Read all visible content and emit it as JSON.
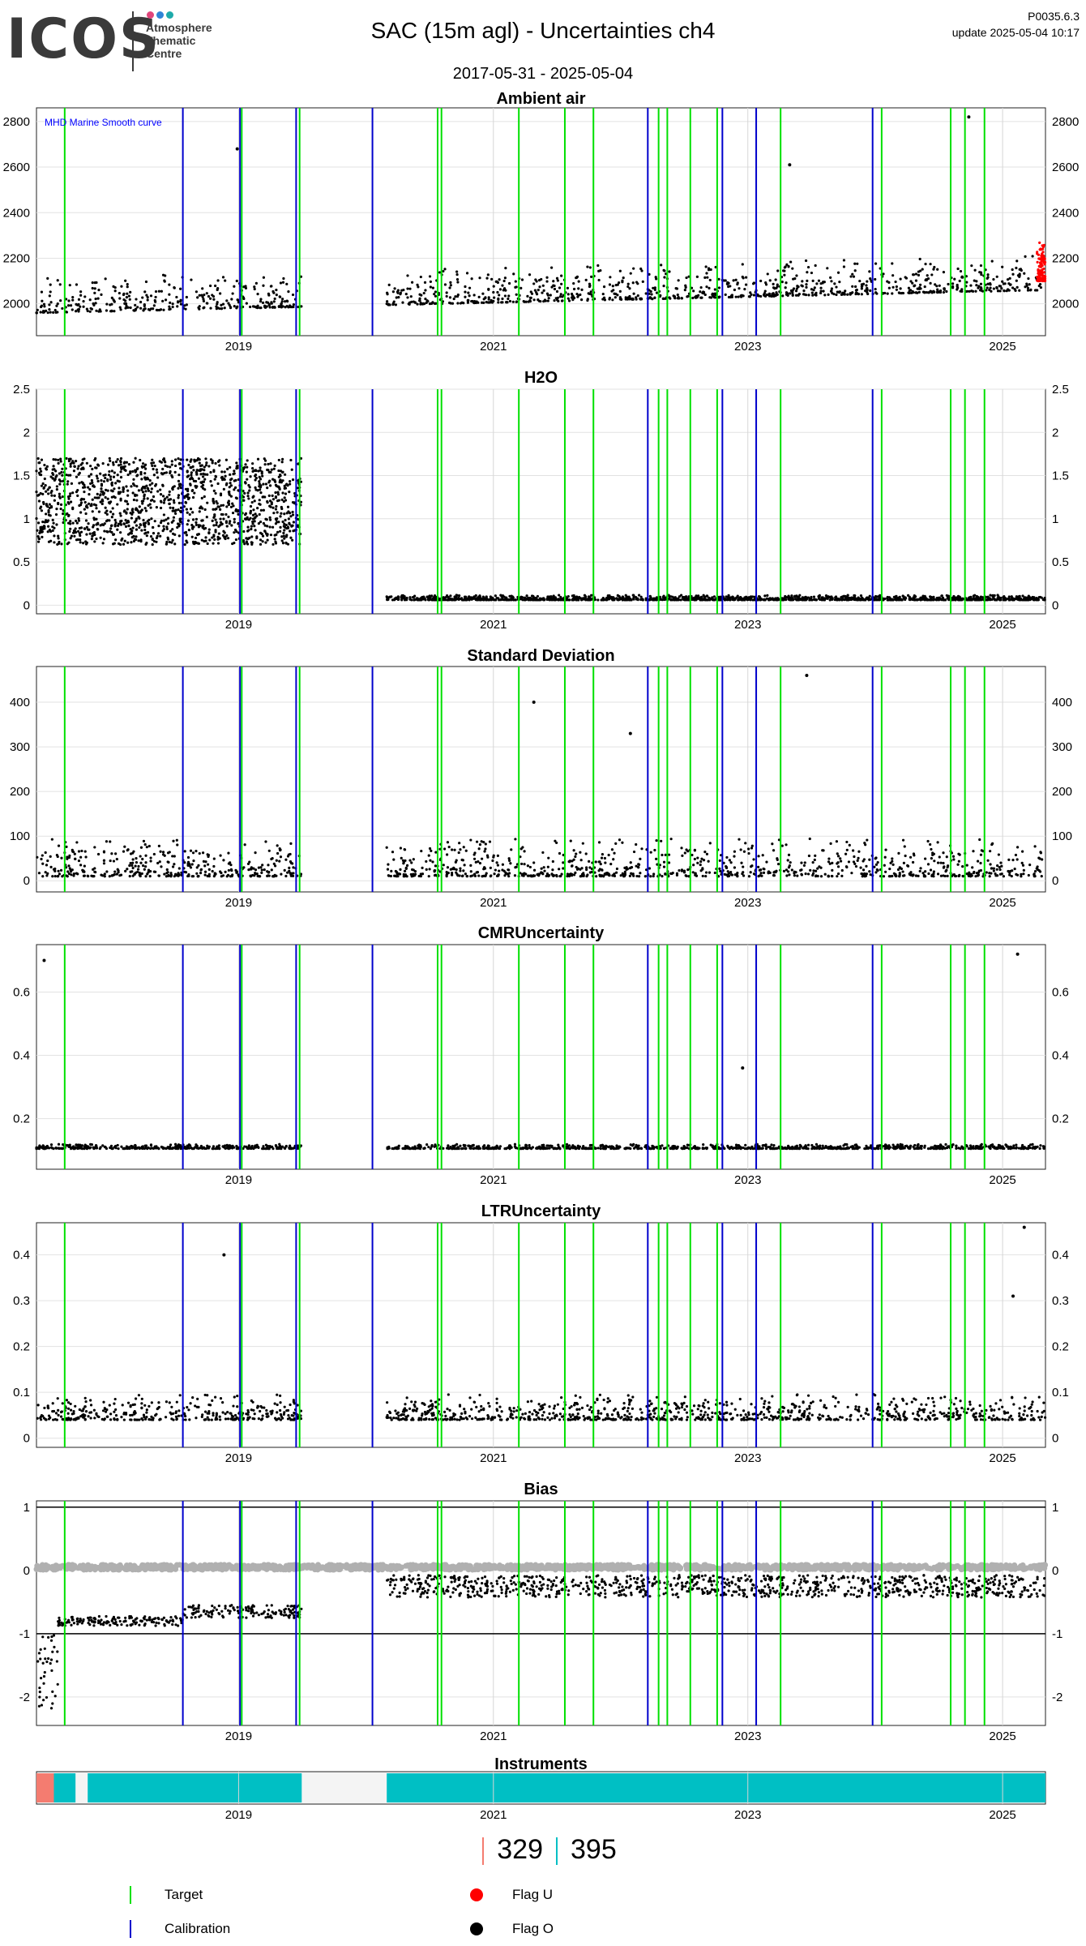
{
  "header": {
    "logo_text": "ICOS",
    "logo_sub": [
      "Atmosphere",
      "Thematic",
      "Centre"
    ],
    "logo_dot_colors": [
      "#e0457b",
      "#2f84d6",
      "#1eaaaa"
    ],
    "title": "SAC  (15m agl) - Uncertainties ch4",
    "date_range": "2017-05-31 - 2025-05-04",
    "version": "P0035.6.3",
    "update": "update  2025-05-04 10:17"
  },
  "chart_data": {
    "x_range": [
      "2017-05-31",
      "2025-05-04"
    ],
    "x_tick_labels": [
      "2019",
      "2021",
      "2023",
      "2025"
    ],
    "target_dates": [
      "2017-08-20",
      "2019-01-10",
      "2019-06-25",
      "2020-07-25",
      "2020-08-05",
      "2021-03-15",
      "2021-07-25",
      "2021-10-15",
      "2022-04-20",
      "2022-05-15",
      "2022-07-20",
      "2022-10-05",
      "2023-04-05",
      "2024-01-20",
      "2024-08-05",
      "2024-09-15",
      "2024-11-10"
    ],
    "calibration_dates": [
      "2018-07-25",
      "2019-01-05",
      "2019-06-15",
      "2020-01-20",
      "2022-03-20",
      "2022-10-20",
      "2023-01-25",
      "2023-12-25"
    ],
    "panels": [
      {
        "title": "Ambient air",
        "type": "scatter",
        "y_ticks": [
          2000,
          2200,
          2400,
          2600,
          2800
        ],
        "ylim": [
          1860,
          2860
        ],
        "annotation": "MHD Marine Smooth curve",
        "series": [
          {
            "name": "data",
            "color": "#000000",
            "x_start": "2017-05-31",
            "x_end": "2025-04-25",
            "baseline": 1960,
            "baseline_end": 2060,
            "spread": 110,
            "max_outliers": [
              2820,
              2610,
              2680
            ]
          },
          {
            "name": "Flag U",
            "color": "#ff0000",
            "x_start": "2025-04-10",
            "x_end": "2025-05-04",
            "baseline": 2100,
            "spread": 120
          }
        ]
      },
      {
        "title": "H2O",
        "type": "scatter",
        "y_ticks": [
          0.0,
          0.5,
          1.0,
          1.5,
          2.0,
          2.5
        ],
        "ylim": [
          -0.1,
          2.5
        ],
        "series": [
          {
            "name": "wet",
            "color": "#000000",
            "x_start": "2017-05-31",
            "x_end": "2019-07-01",
            "baseline": 1.2,
            "spread": 0.5
          },
          {
            "name": "dry",
            "color": "#000000",
            "x_start": "2020-03-01",
            "x_end": "2025-05-04",
            "baseline": 0.06,
            "spread": 0.04
          }
        ]
      },
      {
        "title": "Standard Deviation",
        "type": "scatter",
        "y_ticks": [
          0,
          100,
          200,
          300,
          400
        ],
        "ylim": [
          -25,
          480
        ],
        "series": [
          {
            "name": "data",
            "color": "#000000",
            "x_start": "2017-05-31",
            "x_end": "2025-04-25",
            "baseline": 10,
            "spread": 60,
            "max_outliers": [
              400,
              460,
              330
            ]
          }
        ]
      },
      {
        "title": "CMRUncertainty",
        "type": "scatter",
        "y_ticks": [
          0.2,
          0.4,
          0.6
        ],
        "ylim": [
          0.04,
          0.75
        ],
        "series": [
          {
            "name": "data",
            "color": "#000000",
            "x_start": "2017-05-31",
            "x_end": "2025-05-04",
            "baseline": 0.105,
            "spread": 0.01,
            "max_outliers": [
              0.72,
              0.36,
              0.7
            ]
          }
        ]
      },
      {
        "title": "LTRUncertainty",
        "type": "scatter",
        "y_ticks": [
          0.0,
          0.1,
          0.2,
          0.3,
          0.4
        ],
        "ylim": [
          -0.02,
          0.47
        ],
        "series": [
          {
            "name": "data",
            "color": "#000000",
            "x_start": "2017-05-31",
            "x_end": "2025-05-04",
            "baseline": 0.04,
            "spread": 0.04,
            "max_outliers": [
              0.46,
              0.4,
              0.31
            ]
          }
        ]
      },
      {
        "title": "Bias",
        "type": "scatter",
        "y_ticks": [
          -2,
          -1,
          0,
          1
        ],
        "ylim": [
          -2.45,
          1.1
        ],
        "hlines": [
          1,
          -1
        ],
        "series": [
          {
            "name": "target",
            "color": "#b0b0b0",
            "x_start": "2017-05-31",
            "x_end": "2025-05-04",
            "baseline": 0.05
          },
          {
            "name": "bias",
            "color": "#000000",
            "x_start": "2017-05-31",
            "x_end": "2025-05-04",
            "baseline": -0.3
          }
        ]
      }
    ],
    "instruments": {
      "title": "Instruments",
      "segments": [
        {
          "x_start": "2017-05-31",
          "x_end": "2017-07-20",
          "color": "#f47c70"
        },
        {
          "x_start": "2017-07-20",
          "x_end": "2017-09-20",
          "color": "#00bfc4"
        },
        {
          "x_start": "2017-10-25",
          "x_end": "2019-07-01",
          "color": "#00bfc4"
        },
        {
          "x_start": "2020-03-01",
          "x_end": "2025-05-04",
          "color": "#00bfc4"
        }
      ],
      "counts": [
        {
          "value": "329",
          "color": "#f47c70"
        },
        {
          "value": "395",
          "color": "#00bfc4"
        }
      ]
    }
  },
  "legend": {
    "target": {
      "label": "Target",
      "color": "#00e000"
    },
    "calibration": {
      "label": "Calibration",
      "color": "#0000cc"
    },
    "flag_u": {
      "label": "Flag U",
      "color": "#ff0000"
    },
    "flag_o": {
      "label": "Flag O",
      "color": "#000000"
    }
  }
}
